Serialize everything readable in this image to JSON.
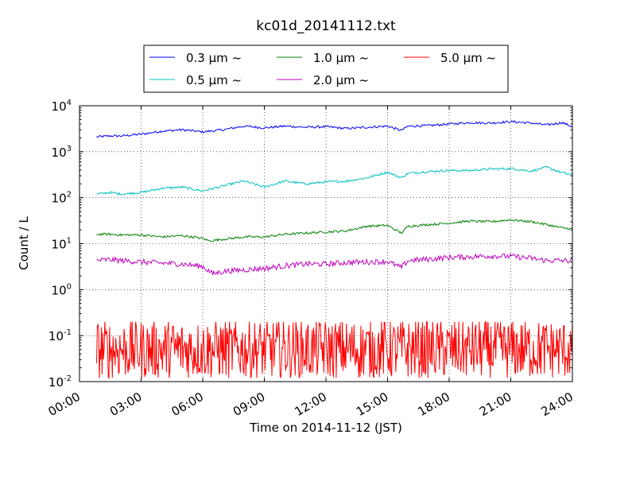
{
  "chart_data": {
    "type": "line",
    "title": "kc01d_20141112.txt",
    "xlabel": "Time on 2014-11-12 (JST)",
    "ylabel": "Count / L",
    "yscale": "log",
    "xlim": [
      "00:00",
      "24:00"
    ],
    "ylim": [
      0.01,
      10000
    ],
    "grid": true,
    "legend_position": "top",
    "x_ticks": [
      "00:00",
      "03:00",
      "06:00",
      "09:00",
      "12:00",
      "15:00",
      "18:00",
      "21:00",
      "24:00"
    ],
    "y_ticks": [
      {
        "base": "10",
        "exp": "-2",
        "value": 0.01
      },
      {
        "base": "10",
        "exp": "-1",
        "value": 0.1
      },
      {
        "base": "10",
        "exp": "0",
        "value": 1
      },
      {
        "base": "10",
        "exp": "1",
        "value": 10
      },
      {
        "base": "10",
        "exp": "2",
        "value": 100
      },
      {
        "base": "10",
        "exp": "3",
        "value": 1000
      },
      {
        "base": "10",
        "exp": "4",
        "value": 10000
      }
    ],
    "series": [
      {
        "name": "0.3 μm ~",
        "color": "#0000ff",
        "x": [
          "00:50",
          "01:30",
          "02:00",
          "03:00",
          "04:00",
          "05:00",
          "06:00",
          "07:00",
          "08:00",
          "09:00",
          "10:00",
          "11:00",
          "12:00",
          "13:00",
          "14:00",
          "15:00",
          "15:40",
          "16:00",
          "17:00",
          "18:00",
          "19:00",
          "20:00",
          "21:00",
          "22:00",
          "22:45",
          "23:30",
          "24:00"
        ],
        "y": [
          2100,
          2200,
          2200,
          2400,
          2800,
          3000,
          2700,
          3000,
          3600,
          3300,
          3600,
          3400,
          3500,
          3200,
          3400,
          3600,
          2900,
          3600,
          3700,
          4000,
          4300,
          4200,
          4500,
          4200,
          3800,
          4300,
          3500
        ]
      },
      {
        "name": "0.5 μm ~",
        "color": "#00bfbf",
        "x": [
          "00:50",
          "01:30",
          "02:00",
          "03:00",
          "04:00",
          "05:00",
          "06:00",
          "07:00",
          "08:00",
          "09:00",
          "10:00",
          "11:00",
          "12:00",
          "13:00",
          "14:00",
          "15:00",
          "15:40",
          "16:00",
          "17:00",
          "18:00",
          "19:00",
          "20:00",
          "21:00",
          "22:00",
          "22:45",
          "23:30",
          "24:00"
        ],
        "y": [
          120,
          130,
          120,
          130,
          160,
          170,
          140,
          180,
          230,
          170,
          230,
          200,
          220,
          230,
          270,
          360,
          270,
          340,
          370,
          390,
          390,
          420,
          430,
          380,
          460,
          350,
          310
        ]
      },
      {
        "name": "1.0 μm ~",
        "color": "#008000",
        "x": [
          "00:50",
          "01:30",
          "02:00",
          "03:00",
          "04:00",
          "05:00",
          "06:00",
          "06:20",
          "07:00",
          "08:00",
          "09:00",
          "10:00",
          "11:00",
          "12:00",
          "13:00",
          "14:00",
          "15:00",
          "15:40",
          "16:00",
          "17:00",
          "18:00",
          "19:00",
          "20:00",
          "21:00",
          "22:00",
          "22:45",
          "23:30",
          "24:00"
        ],
        "y": [
          16,
          16,
          15.5,
          15.5,
          14,
          15,
          13,
          11.5,
          12.5,
          14,
          14,
          16,
          17,
          18,
          19,
          24,
          25,
          17,
          24,
          26,
          28,
          31,
          30,
          33,
          30,
          26,
          22,
          21
        ]
      },
      {
        "name": "2.0 μm ~",
        "color": "#bf00bf",
        "x": [
          "00:50",
          "01:30",
          "02:00",
          "03:00",
          "04:00",
          "05:00",
          "06:00",
          "06:30",
          "07:00",
          "08:00",
          "09:00",
          "10:00",
          "11:00",
          "12:00",
          "13:00",
          "14:00",
          "15:00",
          "15:40",
          "16:00",
          "17:00",
          "18:00",
          "19:00",
          "20:00",
          "21:00",
          "22:00",
          "22:45",
          "23:30",
          "24:00"
        ],
        "y": [
          4.3,
          4.5,
          4.3,
          4.0,
          3.8,
          3.6,
          3.2,
          2.2,
          2.5,
          2.7,
          2.9,
          3.3,
          3.6,
          3.6,
          3.9,
          4.0,
          4.1,
          3.0,
          4.3,
          4.6,
          5.0,
          5.2,
          5.4,
          5.3,
          4.8,
          4.3,
          4.3,
          4.2
        ]
      }
    ],
    "noisy_series": {
      "name": "5.0 μm ~",
      "color": "#ff0000",
      "x_start": "00:50",
      "x_end": "24:00",
      "median": 0.05,
      "min": 0.012,
      "max": 0.2,
      "description_values": [
        0.1,
        0.06,
        0.03,
        0.02,
        0.05,
        0.08,
        0.15,
        0.2,
        0.05,
        0.03,
        0.07,
        0.1,
        0.05
      ]
    },
    "legend": [
      {
        "label": "0.3 μm ~",
        "color": "#0000ff"
      },
      {
        "label": "1.0 μm ~",
        "color": "#008000"
      },
      {
        "label": "5.0 μm ~",
        "color": "#ff0000"
      },
      {
        "label": "0.5 μm ~",
        "color": "#00bfbf"
      },
      {
        "label": "2.0 μm ~",
        "color": "#bf00bf"
      }
    ]
  }
}
